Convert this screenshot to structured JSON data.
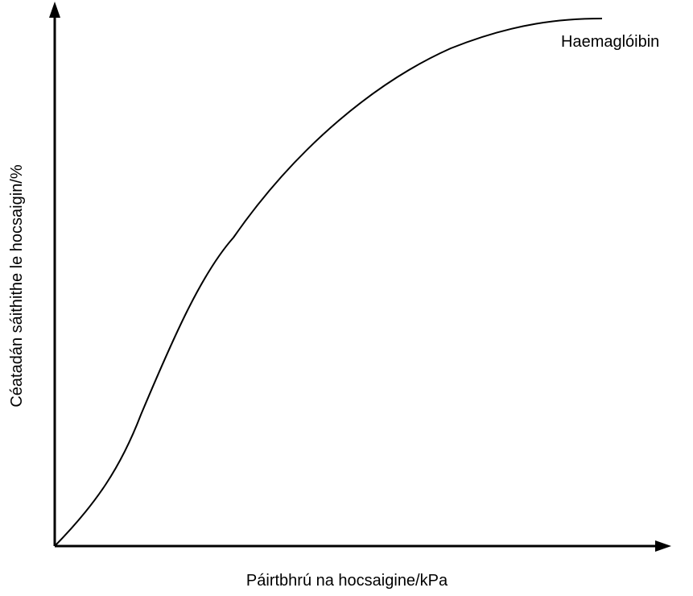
{
  "diagram": {
    "curve_label": "Haemaglóibin",
    "x_axis_label": "Páirtbhrú na hocsaigine/kPa",
    "y_axis_label": "Céatadán sáithithe le hocsaigin/%"
  }
}
